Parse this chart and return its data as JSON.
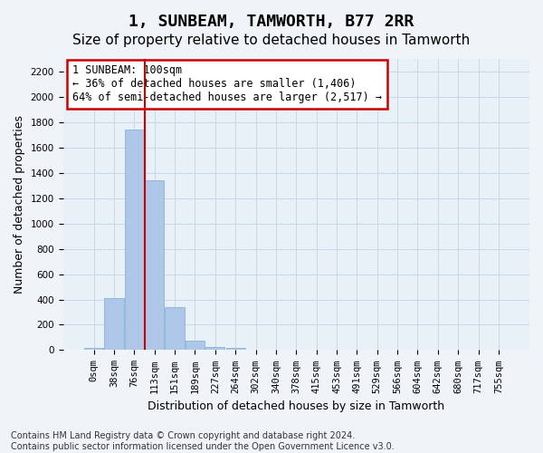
{
  "title": "1, SUNBEAM, TAMWORTH, B77 2RR",
  "subtitle": "Size of property relative to detached houses in Tamworth",
  "xlabel": "Distribution of detached houses by size in Tamworth",
  "ylabel": "Number of detached properties",
  "bar_color": "#aec6e8",
  "bar_edge_color": "#7aadd4",
  "grid_color": "#c8d8e8",
  "background_color": "#e8f0f8",
  "fig_background_color": "#f0f4f8",
  "annotation_box_color": "#cc0000",
  "vline_color": "#cc0000",
  "x_labels": [
    "0sqm",
    "38sqm",
    "76sqm",
    "113sqm",
    "151sqm",
    "189sqm",
    "227sqm",
    "264sqm",
    "302sqm",
    "340sqm",
    "378sqm",
    "415sqm",
    "453sqm",
    "491sqm",
    "529sqm",
    "566sqm",
    "604sqm",
    "642sqm",
    "680sqm",
    "717sqm",
    "755sqm"
  ],
  "bar_values": [
    15,
    410,
    1740,
    1340,
    340,
    75,
    25,
    20,
    0,
    0,
    0,
    0,
    0,
    0,
    0,
    0,
    0,
    0,
    0,
    0,
    0
  ],
  "ylim": [
    0,
    2300
  ],
  "yticks": [
    0,
    200,
    400,
    600,
    800,
    1000,
    1200,
    1400,
    1600,
    1800,
    2000,
    2200
  ],
  "annotation_text": "1 SUNBEAM: 100sqm\n← 36% of detached houses are smaller (1,406)\n64% of semi-detached houses are larger (2,517) →",
  "vline_x": 2.5,
  "footnote": "Contains HM Land Registry data © Crown copyright and database right 2024.\nContains public sector information licensed under the Open Government Licence v3.0.",
  "title_fontsize": 13,
  "subtitle_fontsize": 11,
  "annotation_fontsize": 8.5,
  "axis_fontsize": 9,
  "tick_fontsize": 7.5,
  "footnote_fontsize": 7
}
